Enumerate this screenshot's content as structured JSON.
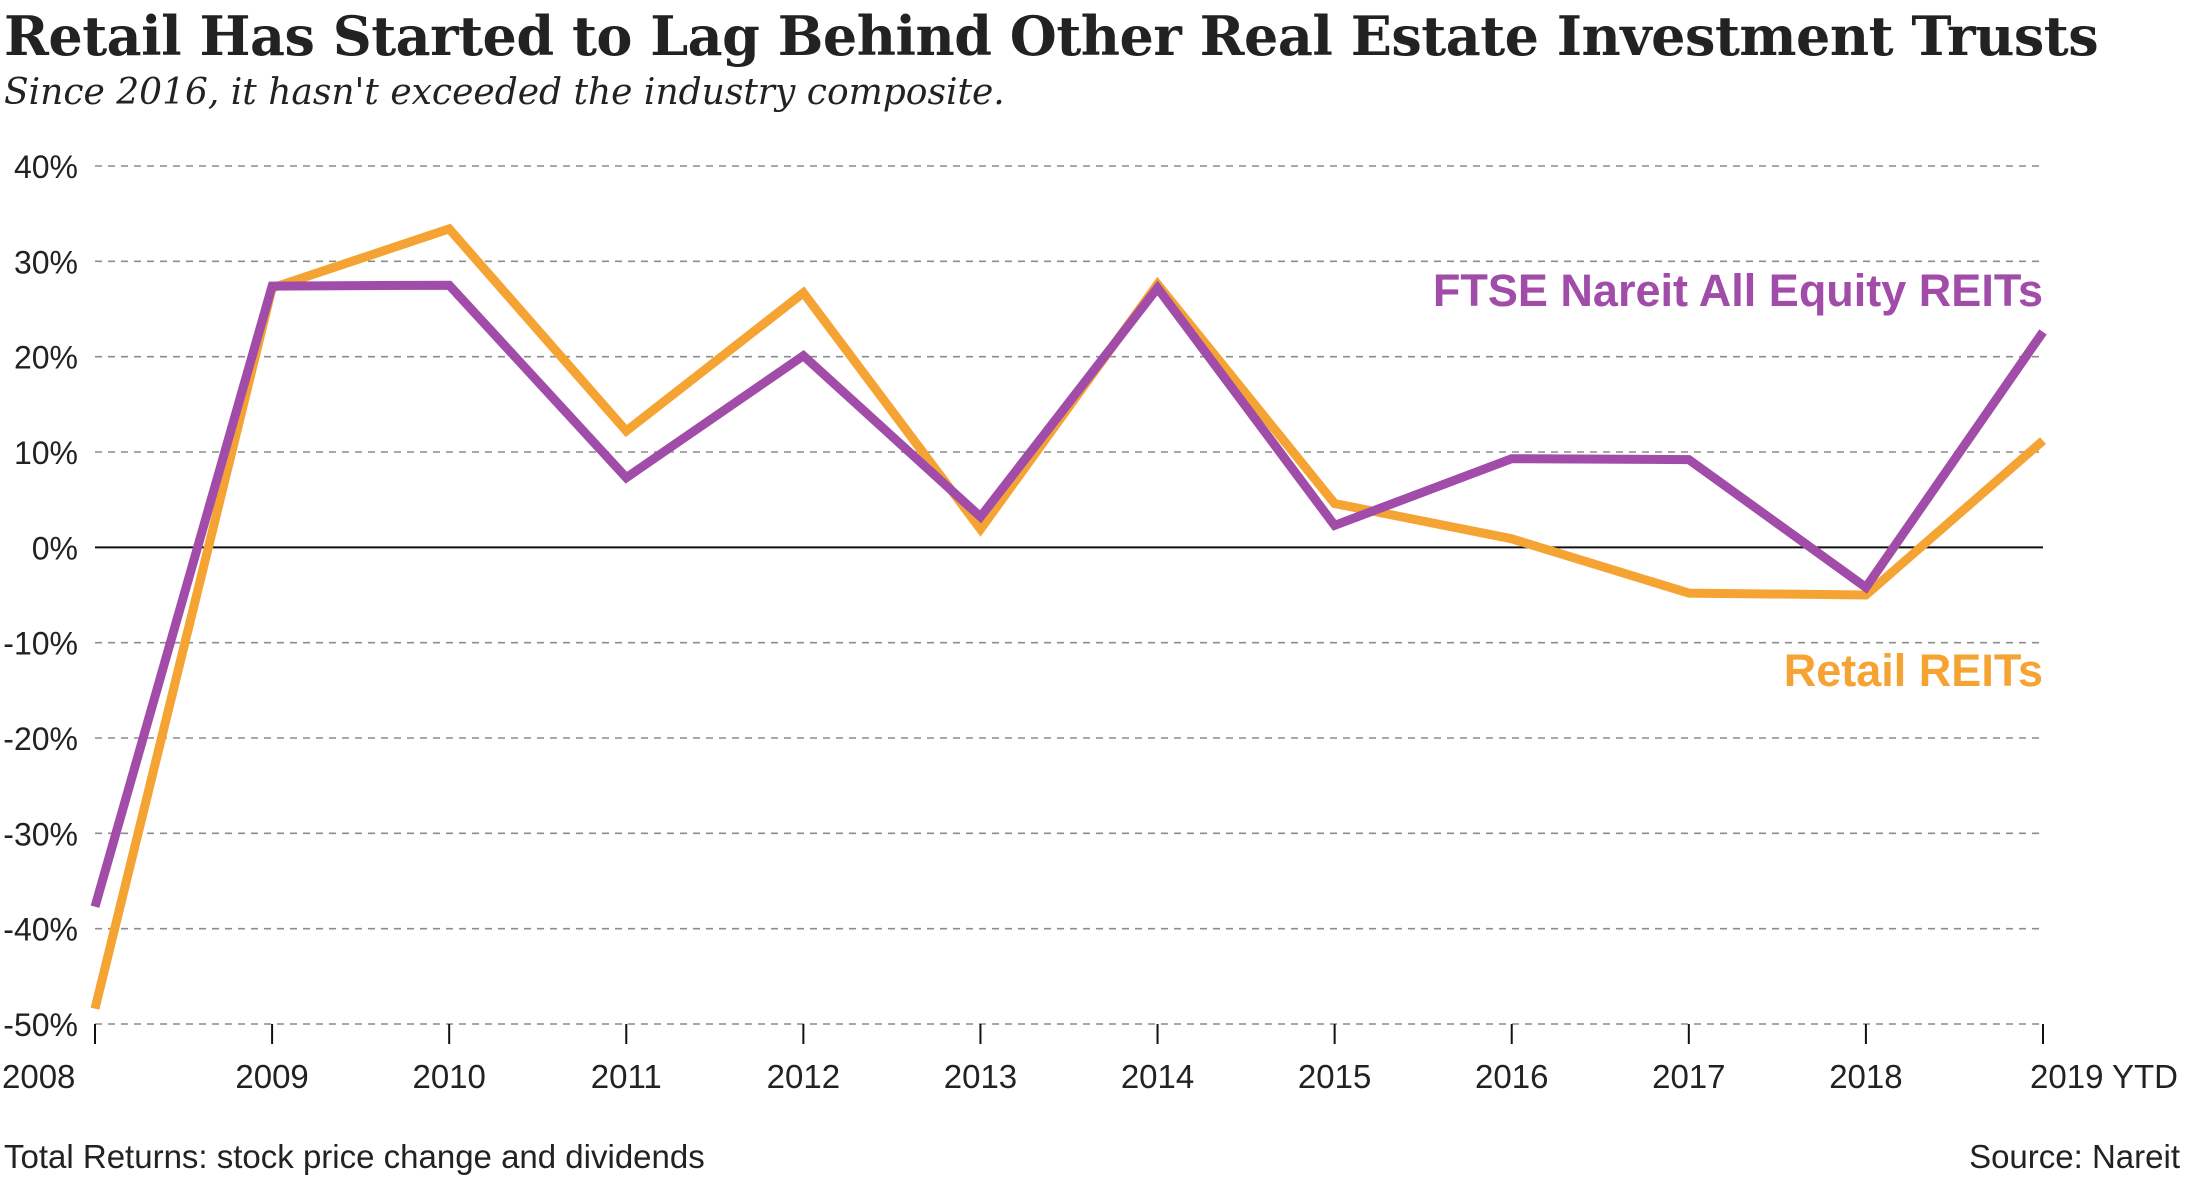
{
  "header": {
    "title": "Retail Has Started to Lag Behind Other Real Estate Investment Trusts",
    "subtitle": "Since 2016, it hasn't exceeded the industry composite."
  },
  "footer": {
    "note": "Total Returns: stock price change and dividends",
    "source": "Source: Nareit"
  },
  "chart_data": {
    "type": "line",
    "categories": [
      "2008",
      "2009",
      "2010",
      "2011",
      "2012",
      "2013",
      "2014",
      "2015",
      "2016",
      "2017",
      "2018",
      "2019 YTD"
    ],
    "ylim": [
      -50,
      40
    ],
    "y_ticks": [
      40,
      30,
      20,
      10,
      0,
      -10,
      -20,
      -30,
      -40,
      -50
    ],
    "y_tick_labels": [
      "40%",
      "30%",
      "20%",
      "10%",
      "0%",
      "-10%",
      "-20%",
      "-30%",
      "-40%",
      "-50%"
    ],
    "grid": "dashed horizontal",
    "series": [
      {
        "name": "Retail REITs",
        "color": "#f5a433",
        "values": [
          -48.4,
          27.2,
          33.4,
          12.2,
          26.7,
          1.9,
          27.6,
          4.6,
          0.9,
          -4.8,
          -5.0,
          11.2
        ]
      },
      {
        "name": "FTSE Nareit All Equity REITs",
        "color": "#a04ca8",
        "values": [
          -37.7,
          27.4,
          27.5,
          7.3,
          20.1,
          3.2,
          27.2,
          2.3,
          9.3,
          9.2,
          -4.2,
          22.6
        ]
      }
    ]
  }
}
